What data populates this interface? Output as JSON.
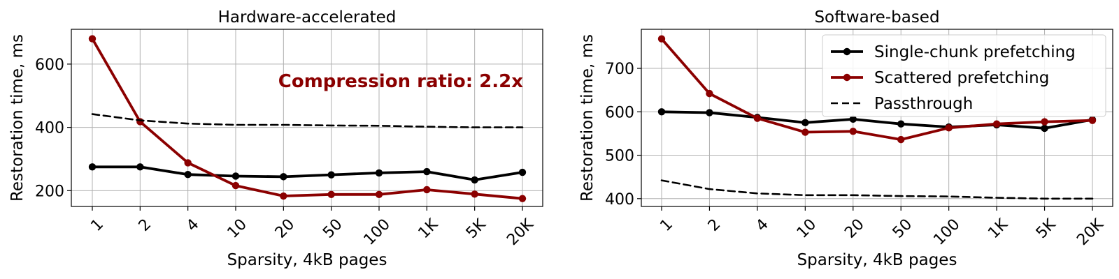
{
  "chart_data": [
    {
      "type": "line",
      "title": "Hardware-accelerated",
      "xlabel": "Sparsity, 4kB pages",
      "ylabel": "Restoration time, ms",
      "categories": [
        "1",
        "2",
        "4",
        "10",
        "20",
        "50",
        "100",
        "1K",
        "5K",
        "20K"
      ],
      "ylim": [
        150,
        710
      ],
      "yticks": [
        200,
        400,
        600
      ],
      "grid": true,
      "annotation": {
        "text": "Compression ratio: 2.2x",
        "color": "#8b0000"
      },
      "series": [
        {
          "name": "Single-chunk prefetching",
          "color": "#000000",
          "style": "solid-marker",
          "values": [
            275,
            275,
            251,
            246,
            244,
            250,
            256,
            260,
            234,
            258
          ]
        },
        {
          "name": "Scattered prefetching",
          "color": "#8b0000",
          "style": "solid-marker",
          "values": [
            680,
            418,
            288,
            216,
            183,
            188,
            188,
            203,
            189,
            175
          ]
        },
        {
          "name": "Passthrough",
          "color": "#000000",
          "style": "dashed",
          "values": [
            442,
            422,
            412,
            408,
            408,
            406,
            405,
            402,
            400,
            400
          ]
        }
      ]
    },
    {
      "type": "line",
      "title": "Software-based",
      "xlabel": "Sparsity, 4kB pages",
      "ylabel": "Restoration time, ms",
      "categories": [
        "1",
        "2",
        "4",
        "10",
        "20",
        "50",
        "100",
        "1K",
        "5K",
        "20K"
      ],
      "ylim": [
        382,
        790
      ],
      "yticks": [
        400,
        500,
        600,
        700
      ],
      "grid": true,
      "legend": "top-right",
      "series": [
        {
          "name": "Single-chunk prefetching",
          "color": "#000000",
          "style": "solid-marker",
          "values": [
            600,
            598,
            587,
            575,
            583,
            572,
            565,
            570,
            562,
            582
          ]
        },
        {
          "name": "Scattered prefetching",
          "color": "#8b0000",
          "style": "solid-marker",
          "values": [
            768,
            642,
            585,
            553,
            555,
            536,
            563,
            572,
            577,
            580
          ]
        },
        {
          "name": "Passthrough",
          "color": "#000000",
          "style": "dashed",
          "values": [
            442,
            422,
            412,
            408,
            408,
            406,
            405,
            402,
            400,
            400
          ]
        }
      ]
    }
  ]
}
